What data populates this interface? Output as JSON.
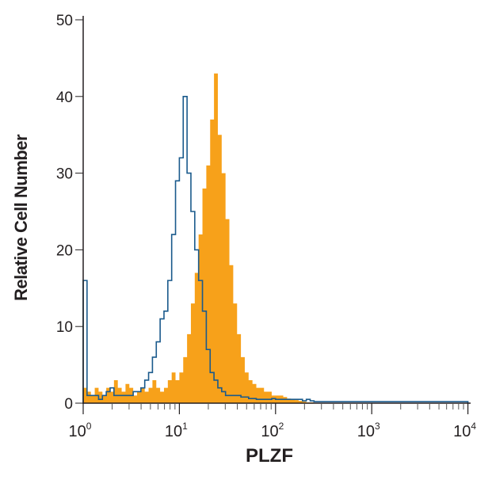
{
  "chart_data": {
    "type": "histogram",
    "title": "",
    "xlabel": "PLZF",
    "ylabel": "Relative Cell Number",
    "xscale": "log10",
    "xlim": [
      1,
      10000
    ],
    "ylim": [
      0,
      50
    ],
    "yticks": [
      0,
      10,
      20,
      30,
      40,
      50
    ],
    "xticks": [
      "10^0",
      "10^1",
      "10^2",
      "10^3",
      "10^4"
    ],
    "grid": false,
    "legend": "none",
    "bin_log_width": 0.04,
    "series": [
      {
        "name": "PLZF antibody (filled)",
        "color": "#f7a11a",
        "style": "filled",
        "values": [
          2,
          1.5,
          1,
          2,
          1.5,
          1,
          2,
          1.5,
          3,
          2,
          1.5,
          2.5,
          2,
          1,
          1.5,
          2,
          1.5,
          2,
          3,
          2,
          1.5,
          2,
          3,
          4,
          3,
          4,
          6,
          9,
          13,
          17,
          22,
          28,
          31,
          37,
          43,
          35,
          30,
          24,
          18,
          13,
          9,
          6,
          4,
          3,
          2.5,
          2,
          2,
          1.5,
          1.5,
          1,
          1,
          1,
          0.8,
          0.6,
          0.5,
          0.4,
          0.3,
          0.2,
          0.1,
          0.1,
          0,
          0,
          0,
          0,
          0,
          0,
          0,
          0,
          0,
          0,
          0,
          0,
          0,
          0,
          0,
          0,
          0,
          0,
          0,
          0,
          0,
          0,
          0,
          0,
          0,
          0,
          0,
          0,
          0,
          0,
          0,
          0,
          0,
          0,
          0,
          0,
          0,
          0,
          0,
          0
        ]
      },
      {
        "name": "Isotype control (outline)",
        "color": "#1a5a8c",
        "style": "outline",
        "values": [
          16,
          1,
          1,
          1,
          0.5,
          1,
          1.5,
          2,
          1,
          1,
          1,
          1,
          1,
          1.5,
          1.5,
          2,
          3,
          4,
          6,
          8,
          11,
          12,
          16,
          22,
          29,
          32,
          40,
          30,
          25,
          20,
          16,
          12,
          7,
          4,
          3,
          2,
          1.5,
          1,
          1,
          1,
          1,
          0.8,
          0.8,
          0.6,
          0.6,
          0.5,
          0.5,
          0.5,
          0.5,
          0.6,
          0.5,
          0.5,
          0.5,
          0.5,
          0.5,
          0.5,
          0.5,
          0.3,
          0.5,
          0.3,
          0.2,
          0.2,
          0.2,
          0.2,
          0.2,
          0.2,
          0.2,
          0.2,
          0.2,
          0.2,
          0.2,
          0.2,
          0.2,
          0.2,
          0.2,
          0.2,
          0.2,
          0.2,
          0.2,
          0.2,
          0.2,
          0.2,
          0.2,
          0.2,
          0.2,
          0.2,
          0.2,
          0.2,
          0.2,
          0.2,
          0.2,
          0.2,
          0.2,
          0.2,
          0.2,
          0.2,
          0.2,
          0.2,
          0.2,
          0.2
        ]
      }
    ]
  }
}
